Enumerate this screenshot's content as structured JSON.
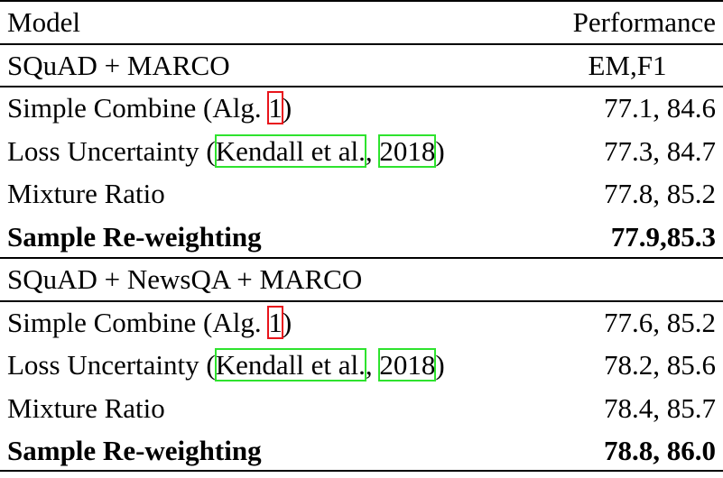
{
  "table": {
    "header": [
      "Model",
      "Performance"
    ],
    "sections": [
      {
        "title": "SQuAD + MARCO",
        "metric": "EM,F1",
        "rows": [
          {
            "model": [
              {
                "text": "Simple Combine (Alg. "
              },
              {
                "text": "1",
                "box": "#e8141b"
              },
              {
                "text": ")"
              }
            ],
            "performance": "77.1, 84.6",
            "bold": false
          },
          {
            "model": [
              {
                "text": "Loss Uncertainty ("
              },
              {
                "text": "Kendall et al.",
                "box": "#2ee32e"
              },
              {
                "text": ", "
              },
              {
                "text": "2018",
                "box": "#2ee32e"
              },
              {
                "text": ")"
              }
            ],
            "performance": "77.3, 84.7",
            "bold": false
          },
          {
            "model": [
              {
                "text": "Mixture Ratio"
              }
            ],
            "performance": "77.8, 85.2",
            "bold": false
          },
          {
            "model": [
              {
                "text": "Sample Re-weighting"
              }
            ],
            "performance": "77.9,85.3",
            "bold": true
          }
        ]
      },
      {
        "title": "SQuAD + NewsQA + MARCO",
        "rows": [
          {
            "model": [
              {
                "text": "Simple Combine (Alg. "
              },
              {
                "text": "1",
                "box": "#e8141b"
              },
              {
                "text": ")"
              }
            ],
            "performance": "77.6, 85.2",
            "bold": false
          },
          {
            "model": [
              {
                "text": "Loss Uncertainty ("
              },
              {
                "text": "Kendall et al.",
                "box": "#2ee32e"
              },
              {
                "text": ", "
              },
              {
                "text": "2018",
                "box": "#2ee32e"
              },
              {
                "text": ")"
              }
            ],
            "performance": "78.2, 85.6",
            "bold": false
          },
          {
            "model": [
              {
                "text": "Mixture Ratio"
              }
            ],
            "performance": "78.4, 85.7",
            "bold": false
          },
          {
            "model": [
              {
                "text": "Sample Re-weighting"
              }
            ],
            "performance": "78.8, 86.0",
            "bold": true
          }
        ]
      }
    ]
  }
}
